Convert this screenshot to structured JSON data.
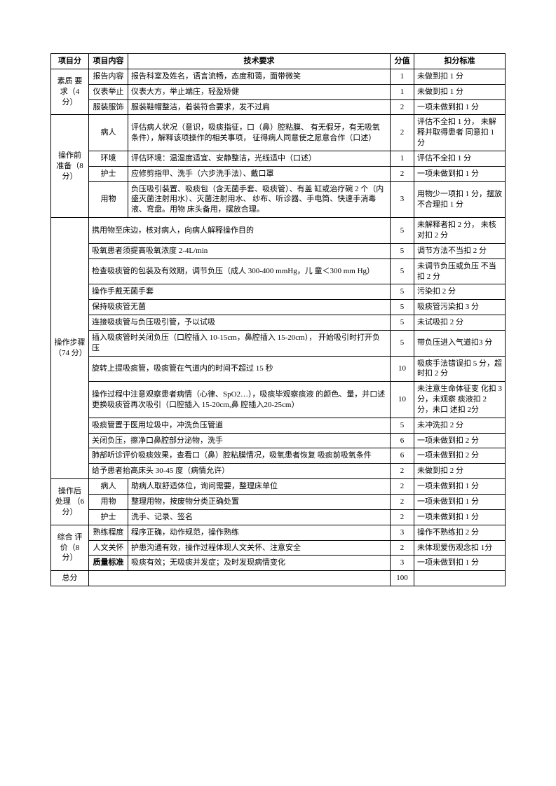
{
  "colors": {
    "border": "#000000",
    "text": "#000000",
    "bg": "#ffffff"
  },
  "font": {
    "family": "SimSun",
    "size_pt": 11,
    "line_height": 1.35
  },
  "headers": {
    "category": "项目分",
    "subitem": "项目内容",
    "requirement": "技术要求",
    "score": "分值",
    "deduction": "扣分标准"
  },
  "groups": [
    {
      "category": "素质  要求（4 分）",
      "rows": [
        {
          "sub": "报告内容",
          "req": "报告科室及姓名，语言流畅，态度和蔼，面带微笑",
          "score": "1",
          "ded": "未做到扣 1 分"
        },
        {
          "sub": "仪表举止",
          "req": "仪表大方，举止端庄，轻盈矫健",
          "score": "1",
          "ded": "未做到扣 1 分"
        },
        {
          "sub": "服装服饰",
          "req": "服装鞋帽整洁，着装符合要求，发不过肩",
          "score": "2",
          "ded": "一项未做到扣 1 分"
        }
      ]
    },
    {
      "category": "操作前 准备（8 分）",
      "rows": [
        {
          "sub": "病人",
          "req": "评估病人状况（意识，吸痰指征，口（鼻）腔粘膜、 有无假牙，有无吸氧条件），解释该项操作的相关事项， 征得病人同意使之愿意合作（口述）",
          "score": "2",
          "ded": "评估不全扣 1 分，  未解释并取得患者  同意扣 1 分"
        },
        {
          "sub": "环境",
          "req": "评估环境：温湿度适宜、安静整洁，光线适中（口述）",
          "score": "1",
          "ded": "评估不全扣 1 分"
        },
        {
          "sub": "护士",
          "req": "应修剪指甲、洗手（六步洗手法）、戴口罩",
          "score": "2",
          "ded": "一项未做到扣 1 分"
        },
        {
          "sub": "用物",
          "req": "负压吸引装置、吸痰包（含无菌手套、吸痰管）、有盖  缸或治疗碗 2 个（内盛灭菌注射用水）、灭菌注射用水、 纱布、听诊器、手电筒、快速手消毒液、弯盘。用物 床头备用，摆放合理。",
          "score": "3",
          "ded": "用物少一项扣 1 分，摆放不合理扣 1 分"
        }
      ]
    },
    {
      "category": "操作步骤（74  分）",
      "rows": [
        {
          "req": "携用物至床边，核对病人，向病人解释操作目的",
          "score": "5",
          "ded": "未解释者扣 2 分，  未核对扣 2 分"
        },
        {
          "req": "吸氧患者须提高吸氧浓度 2-4L/min",
          "score": "5",
          "ded": "调节方法不当扣 2  分"
        },
        {
          "req": "检查吸痰管的包装及有效期，调节负压（成人 300-400  mmHg，儿  童＜300  mm  Hg）",
          "score": "5",
          "ded": "未调节负压或负压  不当扣 2 分"
        },
        {
          "req": "操作手戴无菌手套",
          "score": "5",
          "ded": "污染扣 2 分"
        },
        {
          "req": "保持吸痰管无菌",
          "score": "5",
          "ded": "吸痰管污染扣 3 分"
        },
        {
          "req": "连接吸痰管与负压吸引管，予以试吸",
          "score": "5",
          "ded": "未试吸扣 2 分"
        },
        {
          "req": "插入吸痰管时关闭负压（口腔插入 10-15cm，鼻腔插入 15-20cm）， 开始吸引时打开负压",
          "score": "5",
          "ded": "带负压进入气道扣3 分"
        },
        {
          "req": "旋转上提吸痰管，吸痰管在气道内的时间不超过 15 秒",
          "score": "10",
          "ded": "吸痰手法错误扣 5  分，超时扣 2  分"
        },
        {
          "req": "操作过程中注意观察患者病情（心律、SpO2…），吸痰毕观察痰液  的颜色、量，并口述更换吸痰管再次吸引（口腔插入 15-20cm,鼻  腔插入20-25cm）",
          "score": "10",
          "ded": "未注意生命体征变  化扣 3 分，未观察  痰液扣 2 分，未口  述扣 2分"
        },
        {
          "req": "吸痰管置于医用垃圾中，冲洗负压管道",
          "score": "5",
          "ded": "未冲洗扣 2 分"
        },
        {
          "req": "关闭负压，擦净口鼻腔部分泌物，洗手",
          "score": "6",
          "ded": "一项未做到扣 2 分"
        },
        {
          "req": "肺部听诊评价吸痰效果，查看口（鼻）腔粘膜情况，吸氧患者恢复  吸痰前吸氧条件",
          "score": "6",
          "ded": "一项未做到扣 2 分"
        },
        {
          "req": "给予患者抬高床头 30-45 度（病情允许）",
          "score": "2",
          "ded": "未做到扣 2 分"
        }
      ]
    },
    {
      "category": "操作后 处理  （6 分）",
      "rows": [
        {
          "sub": "病人",
          "req": "助病人取舒适体位，询问需要，整理床单位",
          "score": "2",
          "ded": "一项未做到扣 1 分"
        },
        {
          "sub": "用物",
          "req": "整理用物，按废物分类正确处置",
          "score": "2",
          "ded": "一项未做到扣 1 分"
        },
        {
          "sub": "护士",
          "req": "洗手、记录、签名",
          "score": "2",
          "ded": "一项未做到扣 1 分"
        }
      ]
    },
    {
      "category": "综合  评价（8 分）",
      "rows": [
        {
          "sub": "熟练程度",
          "req": "程序正确，动作规范，操作熟练",
          "score": "3",
          "ded": "操作不熟练扣 2 分"
        },
        {
          "sub": "人文关怀",
          "req": "护患沟通有效，操作过程体现人文关怀、注意安全",
          "score": "2",
          "ded": "未体现爱伤观念扣  1分"
        },
        {
          "sub": "质量标准",
          "sub_bold": true,
          "req": "吸痰有效；无吸痰并发症；及时发现病情变化",
          "score": "3",
          "ded": "一项未做到扣 1 分"
        }
      ]
    }
  ],
  "total": {
    "label": "总分",
    "score": "100"
  }
}
